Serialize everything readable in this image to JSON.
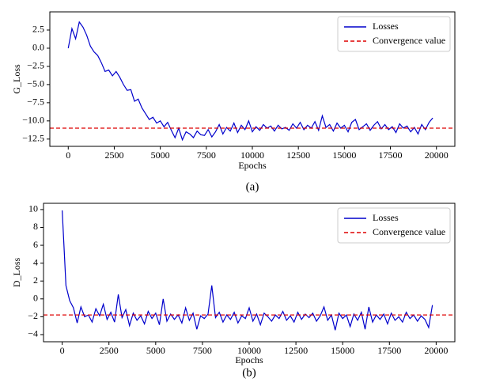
{
  "chart_data": [
    {
      "type": "line",
      "xlabel": "Epochs",
      "ylabel": "G_Loss",
      "caption": "(a)",
      "legend": "upper right",
      "xlim": [
        -1000,
        21000
      ],
      "ylim": [
        -13.5,
        5
      ],
      "xticks": [
        0,
        2500,
        5000,
        7500,
        10000,
        12500,
        15000,
        17500,
        20000
      ],
      "yticks": [
        2.5,
        {
          "value": 0,
          "label": "0.0"
        },
        {
          "value": -2.5,
          "label": "−2.5"
        },
        {
          "value": -5,
          "label": "−5.0"
        },
        {
          "value": -7.5,
          "label": "−7.5"
        },
        {
          "value": -10,
          "label": "−10.0"
        },
        {
          "value": -12.5,
          "label": "−12.5"
        }
      ],
      "x": [
        0,
        200,
        400,
        600,
        800,
        1000,
        1200,
        1400,
        1600,
        1800,
        2000,
        2200,
        2400,
        2600,
        2800,
        3000,
        3200,
        3400,
        3600,
        3800,
        4000,
        4200,
        4400,
        4600,
        4800,
        5000,
        5200,
        5400,
        5600,
        5800,
        6000,
        6200,
        6400,
        6600,
        6800,
        7000,
        7200,
        7400,
        7600,
        7800,
        8000,
        8200,
        8400,
        8600,
        8800,
        9000,
        9200,
        9400,
        9600,
        9800,
        10000,
        10200,
        10400,
        10600,
        10800,
        11000,
        11200,
        11400,
        11600,
        11800,
        12000,
        12200,
        12400,
        12600,
        12800,
        13000,
        13200,
        13400,
        13600,
        13800,
        14000,
        14200,
        14400,
        14600,
        14800,
        15000,
        15200,
        15400,
        15600,
        15800,
        16000,
        16200,
        16400,
        16600,
        16800,
        17000,
        17200,
        17400,
        17600,
        17800,
        18000,
        18200,
        18400,
        18600,
        18800,
        19000,
        19200,
        19400,
        19600,
        19800
      ],
      "series": [
        {
          "name": "Losses",
          "color": "#0000cc",
          "values": [
            0,
            2.7,
            1.3,
            3.6,
            2.9,
            1.8,
            0.3,
            -0.5,
            -1.0,
            -2.0,
            -3.2,
            -3.0,
            -3.8,
            -3.2,
            -4.0,
            -5.0,
            -5.8,
            -5.7,
            -7.3,
            -7.0,
            -8.2,
            -9.0,
            -9.8,
            -9.5,
            -10.3,
            -10.0,
            -10.8,
            -10.2,
            -11.3,
            -12.3,
            -11.0,
            -12.6,
            -11.5,
            -11.8,
            -12.3,
            -11.4,
            -11.9,
            -12.0,
            -11.2,
            -12.2,
            -11.5,
            -10.5,
            -11.8,
            -10.9,
            -11.4,
            -10.3,
            -11.6,
            -10.6,
            -11.2,
            -10.0,
            -11.5,
            -10.8,
            -11.3,
            -10.5,
            -11.0,
            -10.7,
            -11.4,
            -10.6,
            -11.1,
            -10.9,
            -11.3,
            -10.4,
            -11.0,
            -10.2,
            -11.2,
            -10.6,
            -11.0,
            -10.1,
            -11.3,
            -9.3,
            -10.9,
            -10.5,
            -11.4,
            -10.3,
            -11.0,
            -10.6,
            -11.5,
            -10.2,
            -9.8,
            -11.2,
            -10.8,
            -10.4,
            -11.3,
            -10.6,
            -10.1,
            -11.1,
            -10.5,
            -11.2,
            -10.8,
            -11.6,
            -10.4,
            -11.0,
            -10.7,
            -11.5,
            -10.9,
            -11.8,
            -10.5,
            -11.2,
            -10.2,
            -9.6
          ]
        }
      ],
      "reference_line": {
        "name": "Convergence value",
        "color": "#dd0000",
        "value": -11,
        "dashed": true
      }
    },
    {
      "type": "line",
      "xlabel": "Epochs",
      "ylabel": "D_Loss",
      "caption": "(b)",
      "legend": "upper right",
      "xlim": [
        -1000,
        21000
      ],
      "ylim": [
        -4.8,
        10.7
      ],
      "xticks": [
        0,
        2500,
        5000,
        7500,
        10000,
        12500,
        15000,
        17500,
        20000
      ],
      "yticks": [
        10,
        8,
        6,
        4,
        2,
        0,
        {
          "value": -2,
          "label": "−2"
        },
        {
          "value": -4,
          "label": "−4"
        }
      ],
      "x": [
        0,
        200,
        400,
        600,
        800,
        1000,
        1200,
        1400,
        1600,
        1800,
        2000,
        2200,
        2400,
        2600,
        2800,
        3000,
        3200,
        3400,
        3600,
        3800,
        4000,
        4200,
        4400,
        4600,
        4800,
        5000,
        5200,
        5400,
        5600,
        5800,
        6000,
        6200,
        6400,
        6600,
        6800,
        7000,
        7200,
        7400,
        7600,
        7800,
        8000,
        8200,
        8400,
        8600,
        8800,
        9000,
        9200,
        9400,
        9600,
        9800,
        10000,
        10200,
        10400,
        10600,
        10800,
        11000,
        11200,
        11400,
        11600,
        11800,
        12000,
        12200,
        12400,
        12600,
        12800,
        13000,
        13200,
        13400,
        13600,
        13800,
        14000,
        14200,
        14400,
        14600,
        14800,
        15000,
        15200,
        15400,
        15600,
        15800,
        16000,
        16200,
        16400,
        16600,
        16800,
        17000,
        17200,
        17400,
        17600,
        17800,
        18000,
        18200,
        18400,
        18600,
        18800,
        19000,
        19200,
        19400,
        19600,
        19800
      ],
      "series": [
        {
          "name": "Losses",
          "color": "#0000cc",
          "values": [
            9.9,
            1.5,
            -0.2,
            -1.0,
            -2.7,
            -0.9,
            -2.0,
            -1.8,
            -2.6,
            -1.1,
            -1.9,
            -0.6,
            -2.3,
            -1.5,
            -2.6,
            0.5,
            -2.1,
            -1.2,
            -3.0,
            -1.6,
            -2.4,
            -1.9,
            -2.8,
            -1.4,
            -2.2,
            -1.6,
            -2.9,
            0.0,
            -2.5,
            -1.7,
            -2.3,
            -1.8,
            -2.7,
            -1.0,
            -2.4,
            -1.6,
            -3.4,
            -1.9,
            -2.2,
            -1.7,
            1.5,
            -2.1,
            -1.5,
            -2.6,
            -1.8,
            -2.3,
            -1.5,
            -2.7,
            -1.9,
            -2.2,
            -1.0,
            -2.5,
            -1.7,
            -2.9,
            -1.6,
            -2.0,
            -2.5,
            -1.8,
            -2.2,
            -1.4,
            -2.4,
            -1.9,
            -2.6,
            -1.5,
            -2.3,
            -1.7,
            -2.1,
            -1.6,
            -2.5,
            -1.9,
            -0.9,
            -2.4,
            -1.8,
            -3.5,
            -1.6,
            -2.2,
            -1.8,
            -3.1,
            -1.7,
            -2.4,
            -1.5,
            -3.4,
            -0.9,
            -2.6,
            -1.8,
            -2.3,
            -1.7,
            -2.8,
            -1.6,
            -2.4,
            -2.0,
            -2.6,
            -1.5,
            -2.2,
            -1.8,
            -2.5,
            -1.9,
            -2.3,
            -3.2,
            -0.7
          ]
        }
      ],
      "reference_line": {
        "name": "Convergence value",
        "color": "#dd0000",
        "value": -1.8,
        "dashed": true
      }
    }
  ]
}
